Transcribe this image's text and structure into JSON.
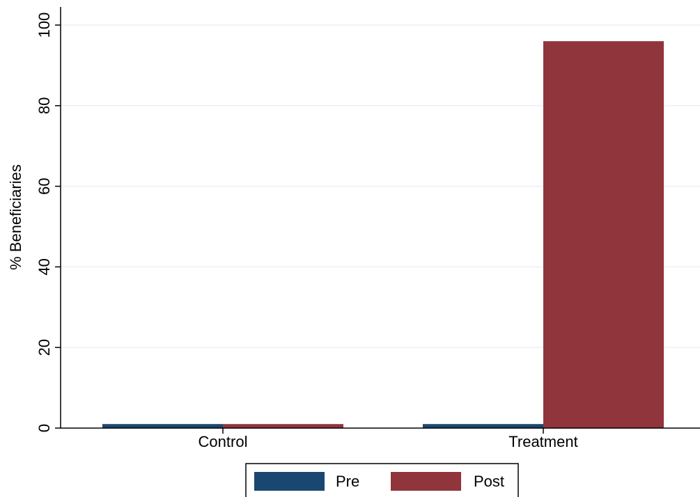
{
  "chart_data": {
    "type": "bar",
    "categories": [
      "Control",
      "Treatment"
    ],
    "series": [
      {
        "name": "Pre",
        "values": [
          1,
          1
        ],
        "color": "#1a476f"
      },
      {
        "name": "Post",
        "values": [
          1,
          96
        ],
        "color": "#90353b"
      }
    ],
    "xlabel": "",
    "ylabel": "% Beneficiaries",
    "ylim": [
      0,
      100
    ],
    "yticks": [
      0,
      20,
      40,
      60,
      80,
      100
    ],
    "grid": true,
    "legend_position": "bottom"
  }
}
